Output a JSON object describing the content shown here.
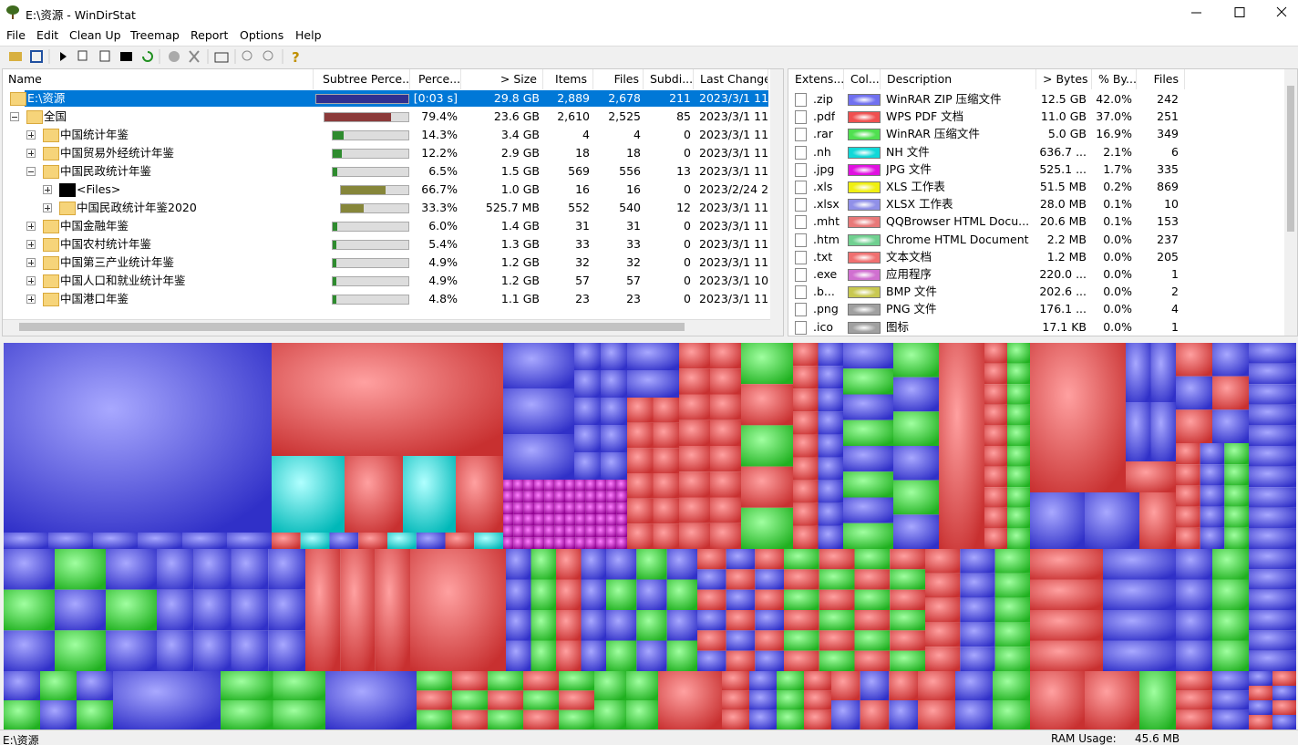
{
  "window": {
    "title": "E:\\资源 - WinDirStat"
  },
  "menu": [
    "File",
    "Edit",
    "Clean Up",
    "Treemap",
    "Report",
    "Options",
    "Help"
  ],
  "tree": {
    "columns": [
      "Name",
      "Subtree Perce...",
      "Perce...",
      "> Size",
      "Items",
      "Files",
      "Subdi...",
      "Last Change"
    ],
    "rows": [
      {
        "name": "E:\\资源",
        "level": 0,
        "expanded": true,
        "selected": true,
        "subtree": 100,
        "bar_color": "#303090",
        "percent": "[0:03 s]",
        "size": "29.8 GB",
        "items": "2,889",
        "files": "2,678",
        "subdirs": "211",
        "last_change": "2023/3/1  11"
      },
      {
        "name": "全国",
        "level": 1,
        "expanded": true,
        "subtree": 79.4,
        "bar_color": "#8b3a3a",
        "percent": "79.4%",
        "size": "23.6 GB",
        "items": "2,610",
        "files": "2,525",
        "subdirs": "85",
        "last_change": "2023/3/1  11"
      },
      {
        "name": "中国统计年鉴",
        "level": 2,
        "expanded": false,
        "subtree": 14.3,
        "bar_color": "#2e8b2e",
        "percent": "14.3%",
        "size": "3.4 GB",
        "items": "4",
        "files": "4",
        "subdirs": "0",
        "last_change": "2023/3/1  11"
      },
      {
        "name": "中国贸易外经统计年鉴",
        "level": 2,
        "expanded": false,
        "subtree": 12.2,
        "bar_color": "#2e8b2e",
        "percent": "12.2%",
        "size": "2.9 GB",
        "items": "18",
        "files": "18",
        "subdirs": "0",
        "last_change": "2023/3/1  11"
      },
      {
        "name": "中国民政统计年鉴",
        "level": 2,
        "expanded": true,
        "subtree": 6.5,
        "bar_color": "#2e8b2e",
        "percent": "6.5%",
        "size": "1.5 GB",
        "items": "569",
        "files": "556",
        "subdirs": "13",
        "last_change": "2023/3/1  11"
      },
      {
        "name": "<Files>",
        "level": 3,
        "expanded": false,
        "files_node": true,
        "subtree": 66.7,
        "bar_color": "#86863a",
        "percent": "66.7%",
        "size": "1.0 GB",
        "items": "16",
        "files": "16",
        "subdirs": "0",
        "last_change": "2023/2/24  2"
      },
      {
        "name": "中国民政统计年鉴2020",
        "level": 3,
        "expanded": false,
        "subtree": 33.3,
        "bar_color": "#86863a",
        "percent": "33.3%",
        "size": "525.7 MB",
        "items": "552",
        "files": "540",
        "subdirs": "12",
        "last_change": "2023/3/1  11"
      },
      {
        "name": "中国金融年鉴",
        "level": 2,
        "expanded": false,
        "subtree": 6.0,
        "bar_color": "#2e8b2e",
        "percent": "6.0%",
        "size": "1.4 GB",
        "items": "31",
        "files": "31",
        "subdirs": "0",
        "last_change": "2023/3/1  11"
      },
      {
        "name": "中国农村统计年鉴",
        "level": 2,
        "expanded": false,
        "subtree": 5.4,
        "bar_color": "#2e8b2e",
        "percent": "5.4%",
        "size": "1.3 GB",
        "items": "33",
        "files": "33",
        "subdirs": "0",
        "last_change": "2023/3/1  11"
      },
      {
        "name": "中国第三产业统计年鉴",
        "level": 2,
        "expanded": false,
        "subtree": 4.9,
        "bar_color": "#2e8b2e",
        "percent": "4.9%",
        "size": "1.2 GB",
        "items": "32",
        "files": "32",
        "subdirs": "0",
        "last_change": "2023/3/1  11"
      },
      {
        "name": "中国人口和就业统计年鉴",
        "level": 2,
        "expanded": false,
        "subtree": 4.9,
        "bar_color": "#2e8b2e",
        "percent": "4.9%",
        "size": "1.2 GB",
        "items": "57",
        "files": "57",
        "subdirs": "0",
        "last_change": "2023/3/1  10"
      },
      {
        "name": "中国港口年鉴",
        "level": 2,
        "expanded": false,
        "subtree": 4.8,
        "bar_color": "#2e8b2e",
        "percent": "4.8%",
        "size": "1.1 GB",
        "items": "23",
        "files": "23",
        "subdirs": "0",
        "last_change": "2023/3/1  11"
      }
    ]
  },
  "extensions": {
    "columns": [
      "Extens...",
      "Col...",
      "Description",
      "> Bytes",
      "% By...",
      "Files"
    ],
    "rows": [
      {
        "ext": ".zip",
        "color": "#7070f0",
        "description": "WinRAR ZIP 压缩文件",
        "bytes": "12.5 GB",
        "percent": "42.0%",
        "files": "242"
      },
      {
        "ext": ".pdf",
        "color": "#f05050",
        "description": "WPS PDF 文档",
        "bytes": "11.0 GB",
        "percent": "37.0%",
        "files": "251"
      },
      {
        "ext": ".rar",
        "color": "#50e050",
        "description": "WinRAR 压缩文件",
        "bytes": "5.0 GB",
        "percent": "16.9%",
        "files": "349"
      },
      {
        "ext": ".nh",
        "color": "#10d8d8",
        "description": "NH 文件",
        "bytes": "636.7 ...",
        "percent": "2.1%",
        "files": "6"
      },
      {
        "ext": ".jpg",
        "color": "#e010e0",
        "description": "JPG 文件",
        "bytes": "525.1 ...",
        "percent": "1.7%",
        "files": "335"
      },
      {
        "ext": ".xls",
        "color": "#f0f010",
        "description": "XLS 工作表",
        "bytes": "51.5 MB",
        "percent": "0.2%",
        "files": "869"
      },
      {
        "ext": ".xlsx",
        "color": "#9090e8",
        "description": "XLSX 工作表",
        "bytes": "28.0 MB",
        "percent": "0.1%",
        "files": "10"
      },
      {
        "ext": ".mht",
        "color": "#e87878",
        "description": "QQBrowser HTML Docu...",
        "bytes": "20.6 MB",
        "percent": "0.1%",
        "files": "153"
      },
      {
        "ext": ".htm",
        "color": "#70d090",
        "description": "Chrome HTML Document",
        "bytes": "2.2 MB",
        "percent": "0.0%",
        "files": "237"
      },
      {
        "ext": ".txt",
        "color": "#f07070",
        "description": "文本文档",
        "bytes": "1.2 MB",
        "percent": "0.0%",
        "files": "205"
      },
      {
        "ext": ".exe",
        "color": "#d070d0",
        "description": "应用程序",
        "bytes": "220.0 ...",
        "percent": "0.0%",
        "files": "1"
      },
      {
        "ext": ".b...",
        "color": "#c8c850",
        "description": "BMP 文件",
        "bytes": "202.6 ...",
        "percent": "0.0%",
        "files": "2"
      },
      {
        "ext": ".png",
        "color": "#a0a0a0",
        "description": "PNG 文件",
        "bytes": "176.1 ...",
        "percent": "0.0%",
        "files": "4"
      },
      {
        "ext": ".ico",
        "color": "#a0a0a0",
        "description": "图标",
        "bytes": "17.1 KB",
        "percent": "0.0%",
        "files": "1"
      }
    ]
  },
  "status": {
    "path": "E:\\资源",
    "ram_label": "RAM Usage:",
    "ram": "45.6 MB"
  }
}
